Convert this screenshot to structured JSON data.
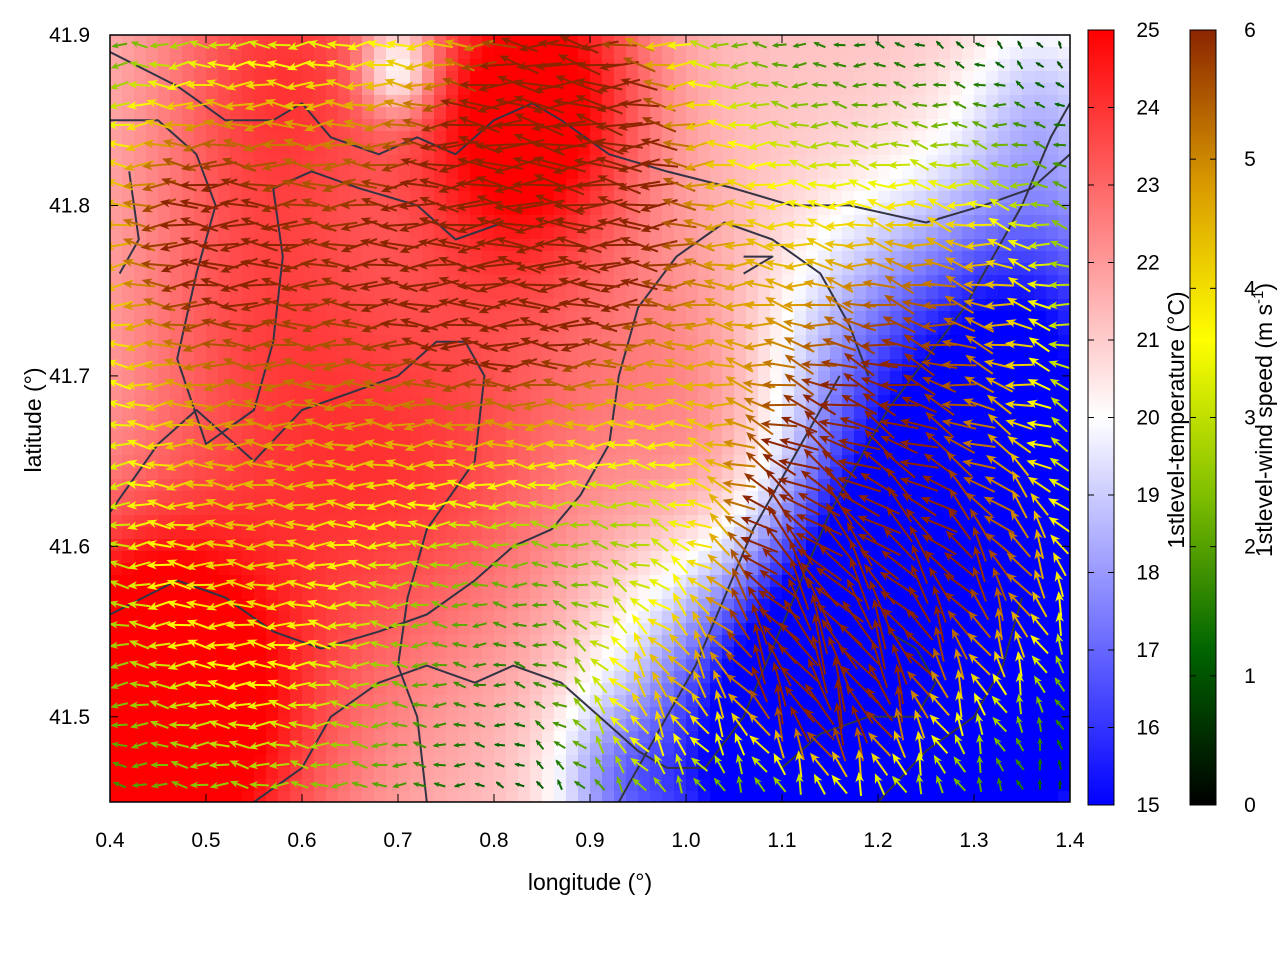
{
  "chart_data": {
    "type": "heatmap",
    "title": "",
    "xlabel": "longitude (°)",
    "ylabel": "latitude (°)",
    "xlim": [
      0.4,
      1.4
    ],
    "ylim": [
      41.45,
      41.9
    ],
    "x_ticks": [
      0.4,
      0.5,
      0.6,
      0.7,
      0.8,
      0.9,
      1.0,
      1.1,
      1.2,
      1.3,
      1.4
    ],
    "x_tick_labels": [
      "0.4",
      "0.5",
      "0.6",
      "0.7",
      "0.8",
      "0.9",
      "1.0",
      "1.1",
      "1.2",
      "1.3",
      "1.4"
    ],
    "y_ticks": [
      41.5,
      41.6,
      41.7,
      41.8,
      41.9
    ],
    "y_tick_labels": [
      "41.5",
      "41.6",
      "41.7",
      "41.8",
      "41.9"
    ],
    "grid": false,
    "colorbars": [
      {
        "name": "temperature",
        "label": "1stlevel-temperature (°C)",
        "range": [
          15,
          25
        ],
        "ticks": [
          15,
          16,
          17,
          18,
          19,
          20,
          21,
          22,
          23,
          24,
          25
        ],
        "tick_labels": [
          "15",
          "16",
          "17",
          "18",
          "19",
          "20",
          "21",
          "22",
          "23",
          "24",
          "25"
        ],
        "colors": [
          "#0000ff",
          "#ffffff",
          "#ff0000"
        ]
      },
      {
        "name": "wind_speed",
        "label_main": "1stlevel-wind speed (m s",
        "label_sup": "-1",
        "label_end": ")",
        "range": [
          0,
          6
        ],
        "ticks": [
          0,
          1,
          2,
          3,
          4,
          5,
          6
        ],
        "tick_labels": [
          "0",
          "1",
          "2",
          "3",
          "4",
          "5",
          "6"
        ],
        "colors": [
          "#000000",
          "#006400",
          "#7fbf00",
          "#ffff00",
          "#d99a00",
          "#8b2500"
        ]
      }
    ],
    "temperature_field": {
      "units": "°C",
      "background": 21.2,
      "features": [
        {
          "lon": 0.46,
          "lat": 41.48,
          "value": 25.0,
          "radius": 0.09
        },
        {
          "lon": 0.43,
          "lat": 41.52,
          "value": 24.2,
          "radius": 0.06
        },
        {
          "lon": 0.85,
          "lat": 41.88,
          "value": 24.4,
          "radius": 0.06
        },
        {
          "lon": 0.58,
          "lat": 41.89,
          "value": 23.6,
          "radius": 0.07
        },
        {
          "lon": 0.82,
          "lat": 41.82,
          "value": 23.4,
          "radius": 0.06
        },
        {
          "lon": 0.55,
          "lat": 41.74,
          "value": 22.9,
          "radius": 0.08
        },
        {
          "lon": 0.65,
          "lat": 41.62,
          "value": 22.7,
          "radius": 0.09
        },
        {
          "lon": 0.78,
          "lat": 41.66,
          "value": 22.6,
          "radius": 0.08
        },
        {
          "lon": 1.0,
          "lat": 41.7,
          "value": 22.3,
          "radius": 0.07
        },
        {
          "lon": 1.05,
          "lat": 41.63,
          "value": 22.4,
          "radius": 0.05
        },
        {
          "lon": 0.7,
          "lat": 41.88,
          "value": 18.0,
          "radius": 0.02
        },
        {
          "lon": 0.93,
          "lat": 41.46,
          "value": 19.0,
          "radius": 0.035
        },
        {
          "lon": 1.18,
          "lat": 41.72,
          "value": 19.6,
          "radius": 0.06
        },
        {
          "lon": 1.37,
          "lat": 41.86,
          "value": 19.5,
          "radius": 0.04
        },
        {
          "lon": 1.36,
          "lat": 41.73,
          "value": 16.5,
          "radius": 0.07
        },
        {
          "lon": 1.3,
          "lat": 41.6,
          "value": 15.8,
          "radius": 0.08
        },
        {
          "lon": 1.22,
          "lat": 41.52,
          "value": 15.4,
          "radius": 0.1
        },
        {
          "lon": 1.1,
          "lat": 41.47,
          "value": 15.8,
          "radius": 0.08
        },
        {
          "lon": 1.3,
          "lat": 41.48,
          "value": 15.6,
          "radius": 0.07
        }
      ]
    },
    "wind_field": {
      "units": "m s-1",
      "background_speed": 0.35,
      "background_direction_deg": 90,
      "features": [
        {
          "lon": 0.85,
          "lat": 41.79,
          "speed": 3.6,
          "direction_deg": 180,
          "radius": 0.1
        },
        {
          "lon": 0.88,
          "lat": 41.86,
          "speed": 4.2,
          "direction_deg": 165,
          "radius": 0.05
        },
        {
          "lon": 0.63,
          "lat": 41.81,
          "speed": 2.9,
          "direction_deg": 180,
          "radius": 0.12
        },
        {
          "lon": 0.5,
          "lat": 41.73,
          "speed": 2.3,
          "direction_deg": 180,
          "radius": 0.1
        },
        {
          "lon": 0.47,
          "lat": 41.8,
          "speed": 2.7,
          "direction_deg": 180,
          "radius": 0.06
        },
        {
          "lon": 0.48,
          "lat": 41.57,
          "speed": 2.1,
          "direction_deg": 180,
          "radius": 0.1
        },
        {
          "lon": 0.6,
          "lat": 41.5,
          "speed": 2.0,
          "direction_deg": 175,
          "radius": 0.1
        },
        {
          "lon": 0.8,
          "lat": 41.72,
          "speed": 2.2,
          "direction_deg": 180,
          "radius": 0.1
        },
        {
          "lon": 1.02,
          "lat": 41.78,
          "speed": 2.4,
          "direction_deg": 180,
          "radius": 0.1
        },
        {
          "lon": 1.22,
          "lat": 41.68,
          "speed": 3.4,
          "direction_deg": 160,
          "radius": 0.09
        },
        {
          "lon": 1.13,
          "lat": 41.6,
          "speed": 4.3,
          "direction_deg": 125,
          "radius": 0.06
        },
        {
          "lon": 1.14,
          "lat": 41.53,
          "speed": 5.1,
          "direction_deg": 110,
          "radius": 0.04
        },
        {
          "lon": 0.97,
          "lat": 41.51,
          "speed": 3.8,
          "direction_deg": 120,
          "radius": 0.05
        },
        {
          "lon": 1.22,
          "lat": 41.52,
          "speed": 3.4,
          "direction_deg": 110,
          "radius": 0.07
        },
        {
          "lon": 1.35,
          "lat": 41.58,
          "speed": 3.1,
          "direction_deg": 105,
          "radius": 0.05
        },
        {
          "lon": 1.3,
          "lat": 41.75,
          "speed": 2.8,
          "direction_deg": 170,
          "radius": 0.08
        }
      ]
    },
    "contours": [
      [
        [
          0.4,
          41.89
        ],
        [
          0.47,
          41.87
        ],
        [
          0.52,
          41.85
        ],
        [
          0.57,
          41.85
        ],
        [
          0.6,
          41.86
        ],
        [
          0.63,
          41.84
        ],
        [
          0.68,
          41.83
        ],
        [
          0.72,
          41.84
        ],
        [
          0.76,
          41.83
        ],
        [
          0.8,
          41.85
        ],
        [
          0.84,
          41.86
        ],
        [
          0.87,
          41.85
        ],
        [
          0.92,
          41.83
        ],
        [
          0.98,
          41.82
        ],
        [
          1.05,
          41.81
        ],
        [
          1.11,
          41.8
        ],
        [
          1.17,
          41.8
        ],
        [
          1.25,
          41.79
        ],
        [
          1.31,
          41.8
        ],
        [
          1.36,
          41.81
        ],
        [
          1.4,
          41.83
        ]
      ],
      [
        [
          0.4,
          41.85
        ],
        [
          0.45,
          41.85
        ],
        [
          0.49,
          41.83
        ],
        [
          0.51,
          41.8
        ],
        [
          0.49,
          41.76
        ],
        [
          0.47,
          41.71
        ],
        [
          0.5,
          41.66
        ],
        [
          0.55,
          41.68
        ],
        [
          0.57,
          41.72
        ],
        [
          0.58,
          41.77
        ],
        [
          0.57,
          41.81
        ],
        [
          0.61,
          41.82
        ],
        [
          0.66,
          41.81
        ],
        [
          0.72,
          41.8
        ],
        [
          0.76,
          41.78
        ],
        [
          0.81,
          41.79
        ]
      ],
      [
        [
          0.41,
          41.76
        ],
        [
          0.43,
          41.78
        ],
        [
          0.42,
          41.82
        ]
      ],
      [
        [
          0.4,
          41.62
        ],
        [
          0.45,
          41.66
        ],
        [
          0.49,
          41.68
        ],
        [
          0.51,
          41.67
        ],
        [
          0.55,
          41.65
        ],
        [
          0.6,
          41.68
        ],
        [
          0.65,
          41.69
        ],
        [
          0.7,
          41.7
        ],
        [
          0.74,
          41.72
        ],
        [
          0.77,
          41.72
        ],
        [
          0.79,
          41.7
        ],
        [
          0.78,
          41.65
        ],
        [
          0.73,
          41.61
        ],
        [
          0.71,
          41.57
        ],
        [
          0.7,
          41.53
        ],
        [
          0.72,
          41.5
        ],
        [
          0.73,
          41.45
        ]
      ],
      [
        [
          0.4,
          41.56
        ],
        [
          0.47,
          41.58
        ],
        [
          0.52,
          41.57
        ],
        [
          0.57,
          41.55
        ],
        [
          0.62,
          41.54
        ],
        [
          0.68,
          41.55
        ],
        [
          0.73,
          41.56
        ],
        [
          0.78,
          41.58
        ],
        [
          0.82,
          41.6
        ],
        [
          0.86,
          41.61
        ],
        [
          0.89,
          41.63
        ],
        [
          0.92,
          41.66
        ],
        [
          0.93,
          41.7
        ],
        [
          0.95,
          41.74
        ],
        [
          0.99,
          41.77
        ],
        [
          1.04,
          41.79
        ],
        [
          1.09,
          41.78
        ],
        [
          1.14,
          41.76
        ],
        [
          1.17,
          41.73
        ],
        [
          1.19,
          41.7
        ]
      ],
      [
        [
          0.55,
          41.45
        ],
        [
          0.6,
          41.47
        ],
        [
          0.63,
          41.5
        ],
        [
          0.68,
          41.52
        ],
        [
          0.73,
          41.53
        ],
        [
          0.78,
          41.52
        ],
        [
          0.82,
          41.53
        ],
        [
          0.87,
          41.52
        ],
        [
          0.91,
          41.5
        ],
        [
          0.95,
          41.48
        ],
        [
          0.98,
          41.47
        ],
        [
          1.02,
          41.47
        ],
        [
          1.06,
          41.5
        ],
        [
          1.09,
          41.54
        ],
        [
          1.12,
          41.58
        ],
        [
          1.15,
          41.62
        ],
        [
          1.18,
          41.65
        ],
        [
          1.21,
          41.68
        ],
        [
          1.25,
          41.71
        ],
        [
          1.29,
          41.74
        ],
        [
          1.32,
          41.77
        ],
        [
          1.35,
          41.8
        ],
        [
          1.38,
          41.84
        ],
        [
          1.4,
          41.86
        ]
      ],
      [
        [
          0.93,
          41.45
        ],
        [
          0.97,
          41.49
        ],
        [
          1.01,
          41.53
        ],
        [
          1.04,
          41.57
        ],
        [
          1.07,
          41.61
        ],
        [
          1.1,
          41.64
        ],
        [
          1.13,
          41.67
        ],
        [
          1.16,
          41.7
        ]
      ],
      [
        [
          1.1,
          41.47
        ],
        [
          1.14,
          41.49
        ],
        [
          1.19,
          41.5
        ],
        [
          1.24,
          41.5
        ],
        [
          1.26,
          41.52
        ],
        [
          1.24,
          41.54
        ],
        [
          1.21,
          41.55
        ]
      ],
      [
        [
          1.2,
          41.45
        ],
        [
          1.25,
          41.48
        ],
        [
          1.3,
          41.5
        ],
        [
          1.33,
          41.53
        ],
        [
          1.35,
          41.57
        ]
      ],
      [
        [
          1.06,
          41.76
        ],
        [
          1.09,
          41.77
        ],
        [
          1.06,
          41.77
        ]
      ]
    ]
  }
}
